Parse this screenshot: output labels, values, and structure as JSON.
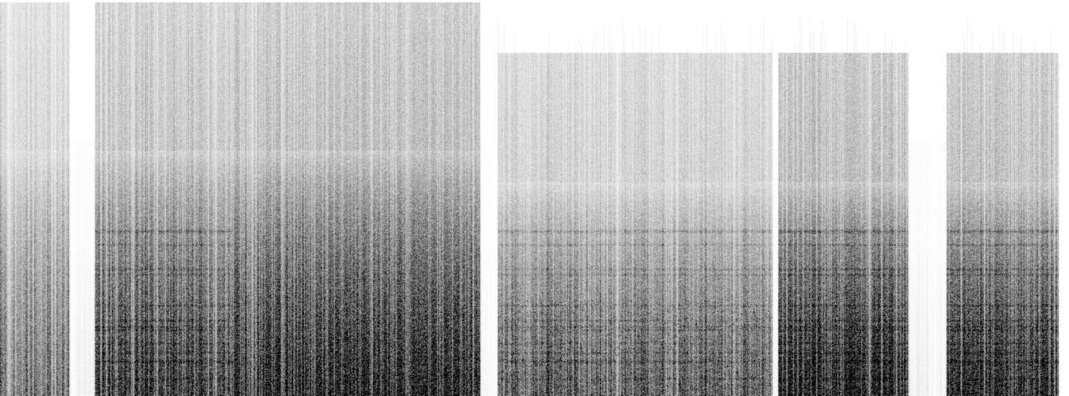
{
  "image": {
    "subject": "spectrogram",
    "colors": {
      "background": "#ffffff",
      "ink": "#000000"
    },
    "segments": [
      {
        "kind": "sparse-columns",
        "intensity": 0.55
      },
      {
        "kind": "quiet",
        "intensity": 0.08
      },
      {
        "kind": "dense-harmonic",
        "intensity": 0.78
      },
      {
        "kind": "dense-streaks",
        "intensity": 0.92
      },
      {
        "kind": "quiet",
        "intensity": 0.05
      },
      {
        "kind": "mottled-low",
        "intensity": 0.62
      },
      {
        "kind": "quiet",
        "intensity": 0.06
      },
      {
        "kind": "dense-low",
        "intensity": 0.95
      },
      {
        "kind": "quiet",
        "intensity": 0.1
      },
      {
        "kind": "dense-low",
        "intensity": 0.9
      }
    ]
  }
}
